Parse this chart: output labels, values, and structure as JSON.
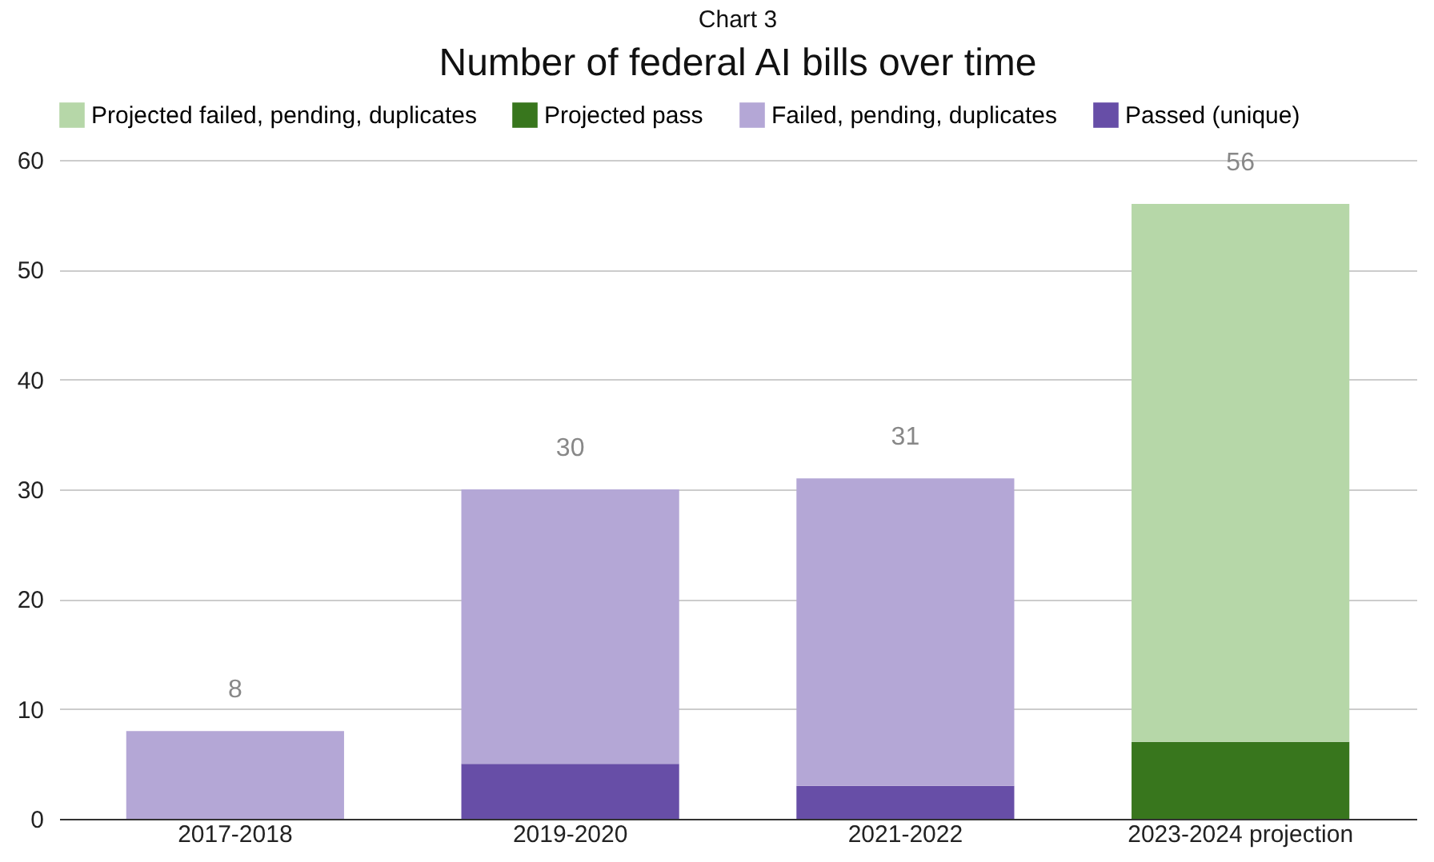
{
  "chart_data": {
    "type": "bar",
    "title": "Number of federal AI bills over time",
    "subtitle": "Chart 3",
    "categories": [
      "2017-2018",
      "2019-2020",
      "2021-2022",
      "2023-2024 projection"
    ],
    "stacked": true,
    "series": [
      {
        "name": "Passed (unique)",
        "color": "#674ea7",
        "values": [
          null,
          5,
          3,
          null
        ]
      },
      {
        "name": "Failed, pending, duplicates",
        "color": "#b4a7d6",
        "values": [
          8,
          25,
          28,
          null
        ]
      },
      {
        "name": "Projected pass",
        "color": "#38761d",
        "values": [
          null,
          null,
          null,
          7
        ]
      },
      {
        "name": "Projected failed, pending, duplicates",
        "color": "#b6d7a8",
        "values": [
          null,
          null,
          null,
          49
        ]
      }
    ],
    "totals": [
      "8",
      "30",
      "31",
      "56"
    ],
    "ylim": [
      0,
      60
    ],
    "yticks": [
      0,
      10,
      20,
      30,
      40,
      50,
      60
    ],
    "grid": "y",
    "legend": "top left"
  }
}
